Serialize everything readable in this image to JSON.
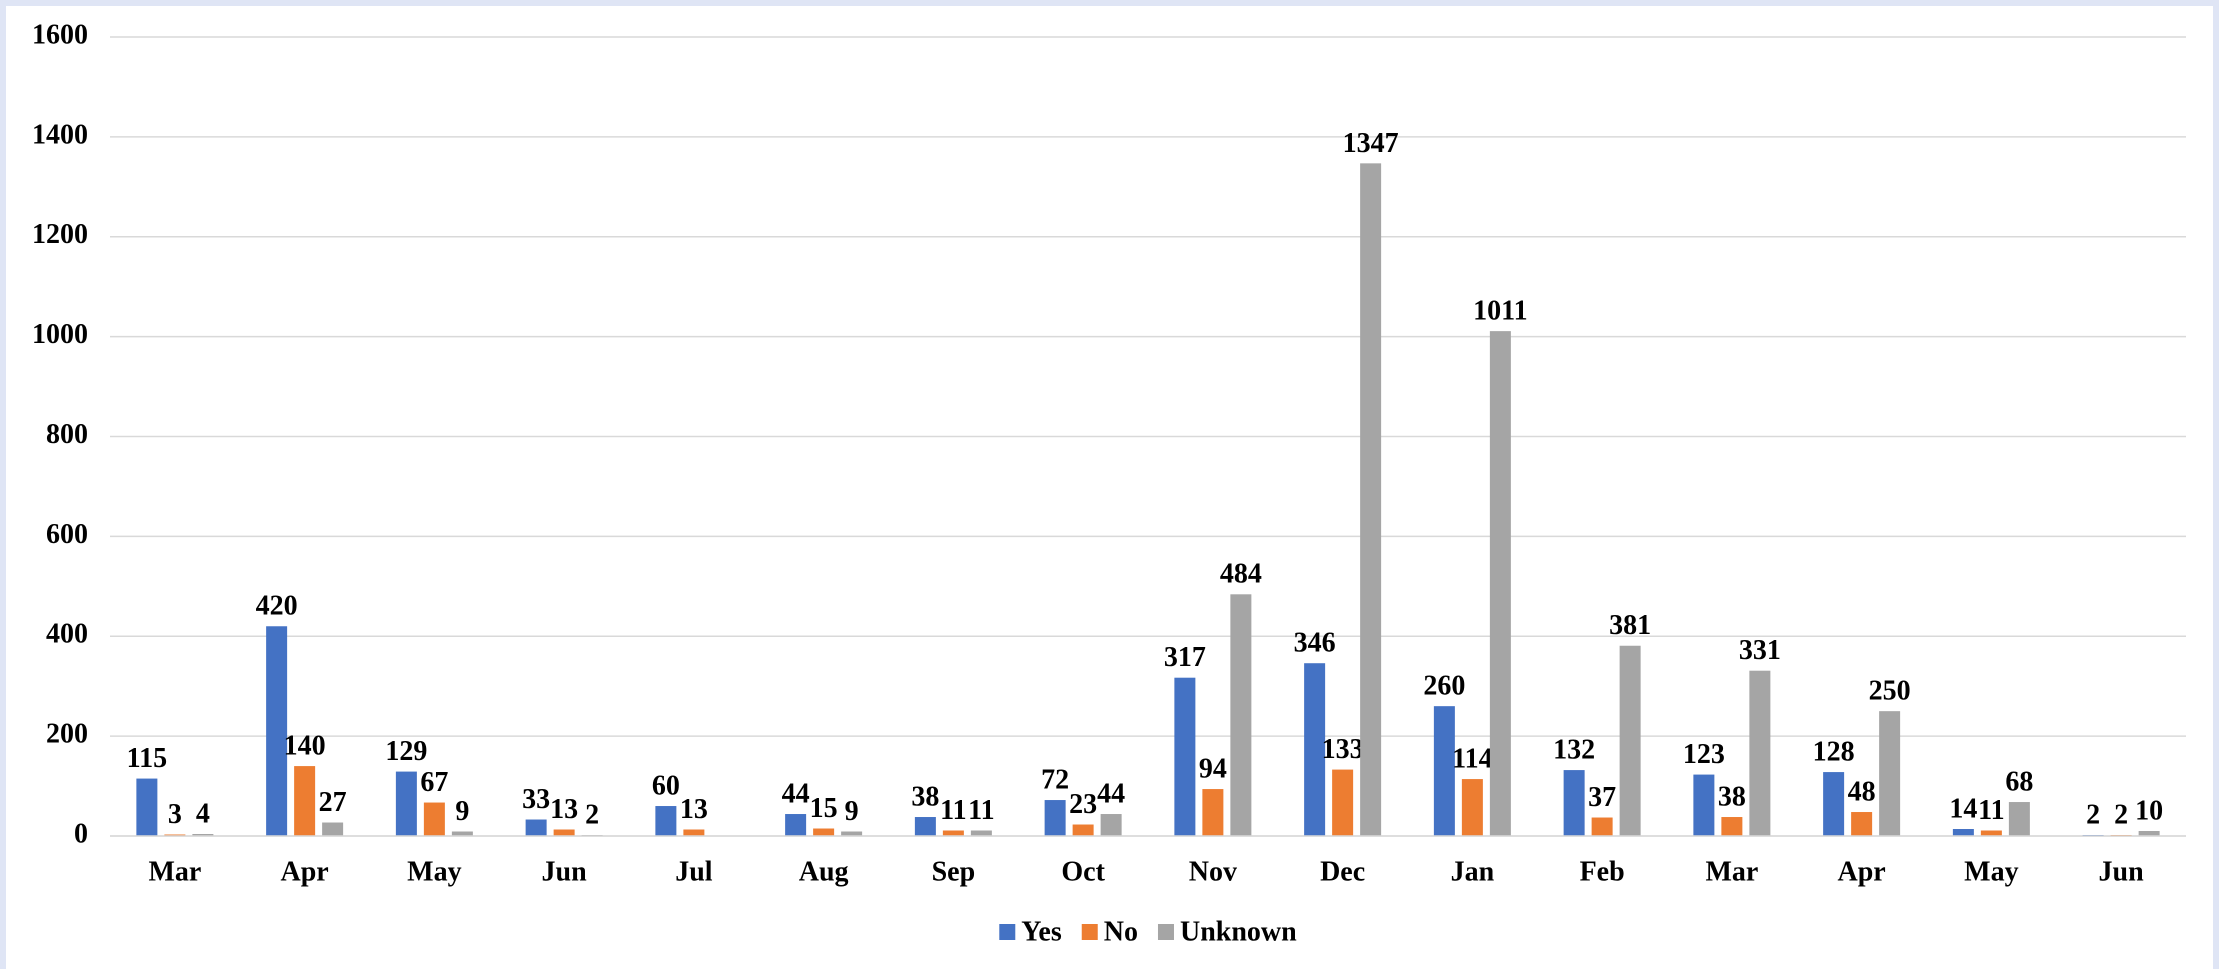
{
  "chart_data": {
    "type": "bar",
    "categories": [
      "Mar",
      "Apr",
      "May",
      "Jun",
      "Jul",
      "Aug",
      "Sep",
      "Oct",
      "Nov",
      "Dec",
      "Jan",
      "Feb",
      "Mar",
      "Apr",
      "May",
      "Jun"
    ],
    "series": [
      {
        "name": "Yes",
        "color": "#4472c4",
        "values": [
          115,
          420,
          129,
          33,
          60,
          44,
          38,
          72,
          317,
          346,
          260,
          132,
          123,
          128,
          14,
          2
        ]
      },
      {
        "name": "No",
        "color": "#ed7d31",
        "values": [
          3,
          140,
          67,
          13,
          13,
          15,
          11,
          23,
          94,
          133,
          114,
          37,
          38,
          48,
          11,
          2
        ]
      },
      {
        "name": "Unknown",
        "color": "#a5a5a5",
        "values": [
          4,
          27,
          9,
          2,
          null,
          9,
          11,
          44,
          484,
          1347,
          1011,
          381,
          331,
          250,
          68,
          10
        ]
      }
    ],
    "ylim": [
      0,
      1600
    ],
    "yticks": [
      0,
      200,
      400,
      600,
      800,
      1000,
      1200,
      1400,
      1600
    ],
    "grid": true,
    "legend": "bottom"
  }
}
